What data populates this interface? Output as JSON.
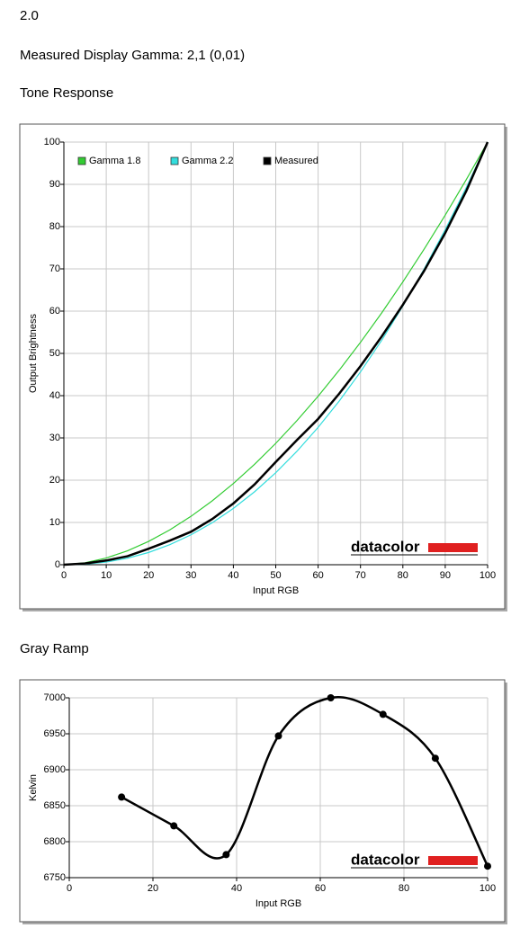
{
  "header": {
    "version": "2.0",
    "gamma_text": "Measured Display Gamma: 2,1 (0,01)"
  },
  "chart_data": [
    {
      "type": "line",
      "title": "Tone Response",
      "x_label": "Input RGB",
      "y_label": "Output Brightness",
      "watermark": "datacolor",
      "x": [
        0,
        5,
        10,
        15,
        20,
        25,
        30,
        35,
        40,
        45,
        50,
        55,
        60,
        65,
        70,
        75,
        80,
        85,
        90,
        95,
        100
      ],
      "series": [
        {
          "name": "Gamma 1.8",
          "color": "#33cc33",
          "values": [
            0,
            0.46,
            1.58,
            3.29,
            5.52,
            8.25,
            11.45,
            15.11,
            19.22,
            23.76,
            28.72,
            34.09,
            39.87,
            46.05,
            52.62,
            59.58,
            66.92,
            74.64,
            82.73,
            91.18,
            100
          ]
        },
        {
          "name": "Gamma 2.2",
          "color": "#33dddd",
          "values": [
            0,
            0.14,
            0.63,
            1.54,
            2.9,
            4.74,
            7.07,
            9.93,
            13.32,
            17.26,
            21.76,
            26.84,
            32.5,
            38.76,
            45.62,
            53.1,
            61.21,
            69.94,
            79.31,
            89.33,
            100
          ]
        },
        {
          "name": "Measured",
          "color": "#000000",
          "values": [
            0,
            0.3,
            1,
            2,
            3.8,
            5.7,
            7.8,
            10.8,
            14.5,
            19,
            24.3,
            29.5,
            34.5,
            40.5,
            47,
            54,
            61.5,
            69.5,
            78.5,
            88.5,
            100
          ]
        }
      ],
      "xlim": [
        0,
        100
      ],
      "xticks": [
        0,
        10,
        20,
        30,
        40,
        50,
        60,
        70,
        80,
        90,
        100
      ],
      "ylim": [
        0,
        100
      ],
      "yticks": [
        0,
        10,
        20,
        30,
        40,
        50,
        60,
        70,
        80,
        90,
        100
      ],
      "grid": true,
      "legend": "top-left"
    },
    {
      "type": "line",
      "title": "Gray Ramp",
      "x_label": "Input RGB",
      "y_label": "Kelvin",
      "watermark": "datacolor",
      "x": [
        12.5,
        25,
        37.5,
        50,
        62.5,
        75,
        87.5,
        100
      ],
      "series": [
        {
          "name": "Kelvin",
          "color": "#000000",
          "values": [
            6862,
            6822,
            6782,
            6947,
            7000,
            6977,
            6916,
            6766
          ]
        }
      ],
      "xlim": [
        0,
        100
      ],
      "xticks": [
        0,
        20,
        40,
        60,
        80,
        100
      ],
      "ylim": [
        6750,
        7000
      ],
      "yticks": [
        6750,
        6800,
        6850,
        6900,
        6950,
        7000
      ],
      "grid": true,
      "markers": true,
      "smooth": true
    }
  ]
}
